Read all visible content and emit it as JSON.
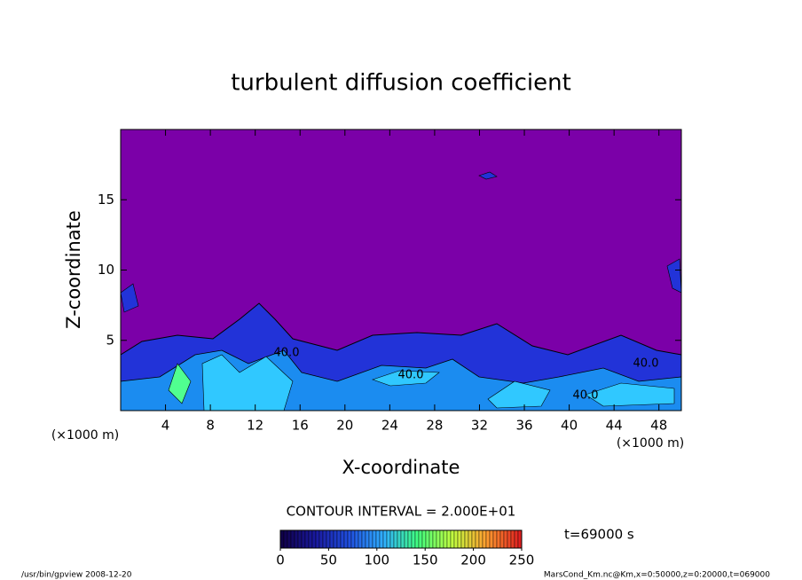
{
  "chart_data": {
    "type": "contour",
    "title": "turbulent diffusion coefficient",
    "xlabel": "X-coordinate",
    "ylabel": "Z-coordinate",
    "x_unit_left": "(×1000 m)",
    "x_unit_right": "(×1000 m)",
    "xlim": [
      0,
      50
    ],
    "ylim": [
      0,
      20
    ],
    "xticks": [
      4,
      8,
      12,
      16,
      20,
      24,
      28,
      32,
      36,
      40,
      44,
      48
    ],
    "yticks": [
      5,
      10,
      15
    ],
    "contour_labels": [
      "40.0",
      "40.0",
      "40.0",
      "40.0"
    ],
    "contour_interval": "CONTOUR INTERVAL = 2.000E+01",
    "time": "t=69000 s",
    "colorbar": {
      "lim": [
        0,
        250
      ],
      "ticks": [
        0,
        50,
        100,
        150,
        200,
        250
      ]
    },
    "colormap": [
      "#10004a",
      "#1a1aa0",
      "#2050e0",
      "#30b0ff",
      "#40ff80",
      "#c0ff40",
      "#ffa030",
      "#e02020"
    ],
    "background_color": "#7b00a8",
    "footer_left": "/usr/bin/gpview  2008-12-20",
    "footer_right": "MarsCond_Km.nc@Km,x=0:50000,z=0:20000,t=069000"
  }
}
